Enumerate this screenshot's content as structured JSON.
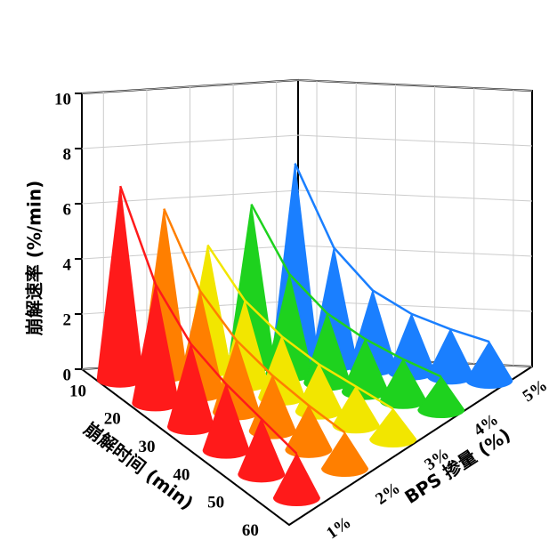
{
  "chart_data": {
    "type": "cone3d",
    "zlabel": "崩解速率 (%/min)",
    "xlabel": "崩解时间 (min)",
    "ylabel": "BPS 掺量 (%)",
    "x": [
      10,
      20,
      30,
      40,
      50,
      60
    ],
    "zlim": [
      0,
      10
    ],
    "zticks": [
      0,
      2,
      4,
      6,
      8,
      10
    ],
    "grid": true,
    "series": [
      {
        "name": "1%",
        "color": "#ff1a1a",
        "values": [
          7.0,
          4.3,
          3.0,
          2.4,
          2.0,
          1.6
        ]
      },
      {
        "name": "2%",
        "color": "#ff7f00",
        "values": [
          6.0,
          3.7,
          2.6,
          2.0,
          1.6,
          1.3
        ]
      },
      {
        "name": "3%",
        "color": "#f2e600",
        "values": [
          4.5,
          3.0,
          2.2,
          1.7,
          1.4,
          1.1
        ]
      },
      {
        "name": "4%",
        "color": "#1ed21e",
        "values": [
          5.8,
          3.6,
          2.5,
          1.9,
          1.5,
          1.2
        ]
      },
      {
        "name": "5%",
        "color": "#1a7fff",
        "values": [
          7.1,
          4.2,
          2.8,
          2.1,
          1.7,
          1.4
        ]
      }
    ]
  }
}
